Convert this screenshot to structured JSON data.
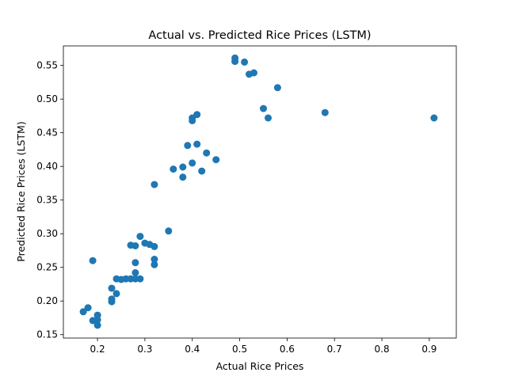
{
  "chart_data": {
    "type": "scatter",
    "title": "Actual vs. Predicted Rice Prices (LSTM)",
    "xlabel": "Actual Rice Prices",
    "ylabel": "Predicted Rice Prices (LSTM)",
    "xlim": [
      0.128,
      0.957
    ],
    "ylim": [
      0.145,
      0.579
    ],
    "xticks": [
      0.2,
      0.3,
      0.4,
      0.5,
      0.6,
      0.7,
      0.8,
      0.9
    ],
    "xtick_labels": [
      "0.2",
      "0.3",
      "0.4",
      "0.5",
      "0.6",
      "0.7",
      "0.8",
      "0.9"
    ],
    "yticks": [
      0.15,
      0.2,
      0.25,
      0.3,
      0.35,
      0.4,
      0.45,
      0.5,
      0.55
    ],
    "ytick_labels": [
      "0.15",
      "0.20",
      "0.25",
      "0.30",
      "0.35",
      "0.40",
      "0.45",
      "0.50",
      "0.55"
    ],
    "grid": false,
    "marker_color": "#1f77b4",
    "points": [
      {
        "x": 0.17,
        "y": 0.184
      },
      {
        "x": 0.18,
        "y": 0.19
      },
      {
        "x": 0.19,
        "y": 0.171
      },
      {
        "x": 0.19,
        "y": 0.26
      },
      {
        "x": 0.2,
        "y": 0.164
      },
      {
        "x": 0.2,
        "y": 0.172
      },
      {
        "x": 0.2,
        "y": 0.179
      },
      {
        "x": 0.23,
        "y": 0.199
      },
      {
        "x": 0.23,
        "y": 0.203
      },
      {
        "x": 0.23,
        "y": 0.219
      },
      {
        "x": 0.24,
        "y": 0.211
      },
      {
        "x": 0.24,
        "y": 0.233
      },
      {
        "x": 0.25,
        "y": 0.232
      },
      {
        "x": 0.26,
        "y": 0.233
      },
      {
        "x": 0.27,
        "y": 0.233
      },
      {
        "x": 0.28,
        "y": 0.233
      },
      {
        "x": 0.29,
        "y": 0.233
      },
      {
        "x": 0.28,
        "y": 0.242
      },
      {
        "x": 0.28,
        "y": 0.257
      },
      {
        "x": 0.27,
        "y": 0.283
      },
      {
        "x": 0.28,
        "y": 0.282
      },
      {
        "x": 0.29,
        "y": 0.296
      },
      {
        "x": 0.3,
        "y": 0.286
      },
      {
        "x": 0.31,
        "y": 0.284
      },
      {
        "x": 0.32,
        "y": 0.281
      },
      {
        "x": 0.32,
        "y": 0.262
      },
      {
        "x": 0.32,
        "y": 0.254
      },
      {
        "x": 0.32,
        "y": 0.373
      },
      {
        "x": 0.35,
        "y": 0.304
      },
      {
        "x": 0.36,
        "y": 0.396
      },
      {
        "x": 0.38,
        "y": 0.399
      },
      {
        "x": 0.38,
        "y": 0.384
      },
      {
        "x": 0.39,
        "y": 0.431
      },
      {
        "x": 0.4,
        "y": 0.405
      },
      {
        "x": 0.4,
        "y": 0.468
      },
      {
        "x": 0.4,
        "y": 0.472
      },
      {
        "x": 0.41,
        "y": 0.477
      },
      {
        "x": 0.41,
        "y": 0.433
      },
      {
        "x": 0.42,
        "y": 0.393
      },
      {
        "x": 0.43,
        "y": 0.42
      },
      {
        "x": 0.45,
        "y": 0.41
      },
      {
        "x": 0.49,
        "y": 0.561
      },
      {
        "x": 0.49,
        "y": 0.556
      },
      {
        "x": 0.51,
        "y": 0.555
      },
      {
        "x": 0.52,
        "y": 0.537
      },
      {
        "x": 0.53,
        "y": 0.539
      },
      {
        "x": 0.55,
        "y": 0.486
      },
      {
        "x": 0.56,
        "y": 0.472
      },
      {
        "x": 0.58,
        "y": 0.517
      },
      {
        "x": 0.68,
        "y": 0.48
      },
      {
        "x": 0.91,
        "y": 0.472
      }
    ]
  }
}
